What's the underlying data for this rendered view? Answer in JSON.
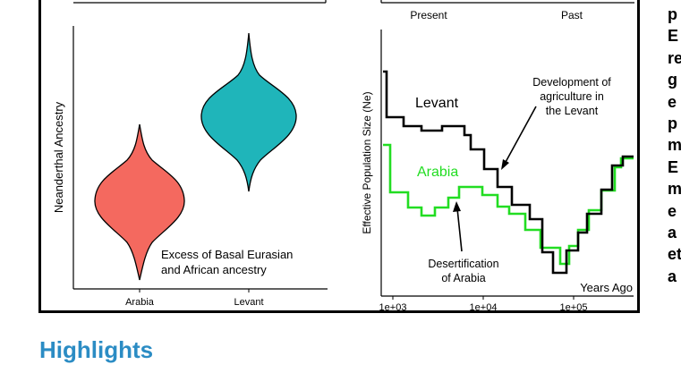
{
  "figure": {
    "left_panel": {
      "ylabel": "Neanderthal Ancestry",
      "categories": [
        "Arabia",
        "Levant"
      ],
      "colors": {
        "arabia": "#f4695f",
        "levant": "#1fb5ba"
      },
      "annotation_line1": "Excess of Basal Eurasian",
      "annotation_line2": "and African ancestry"
    },
    "right_panel": {
      "top_labels": {
        "present": "Present",
        "past": "Past"
      },
      "ylabel": "Effective Population Size (Ne)",
      "series_levant": "Levant",
      "series_arabia": "Arabia",
      "annotation_agri": [
        "Development of",
        "agriculture in",
        "the Levant"
      ],
      "annotation_desert": [
        "Desertification",
        "of Arabia"
      ],
      "xlabel": "Years Ago",
      "xticks": [
        "1e+03",
        "1e+04",
        "1e+05"
      ],
      "colors": {
        "levant": "#000000",
        "arabia": "#22dd22"
      }
    }
  },
  "highlights_heading": "Highlights",
  "side_text_letters": [
    "p",
    "E",
    "re",
    "g",
    "e",
    "p",
    "m",
    "E",
    "m",
    "e",
    "a",
    "et",
    "a"
  ]
}
